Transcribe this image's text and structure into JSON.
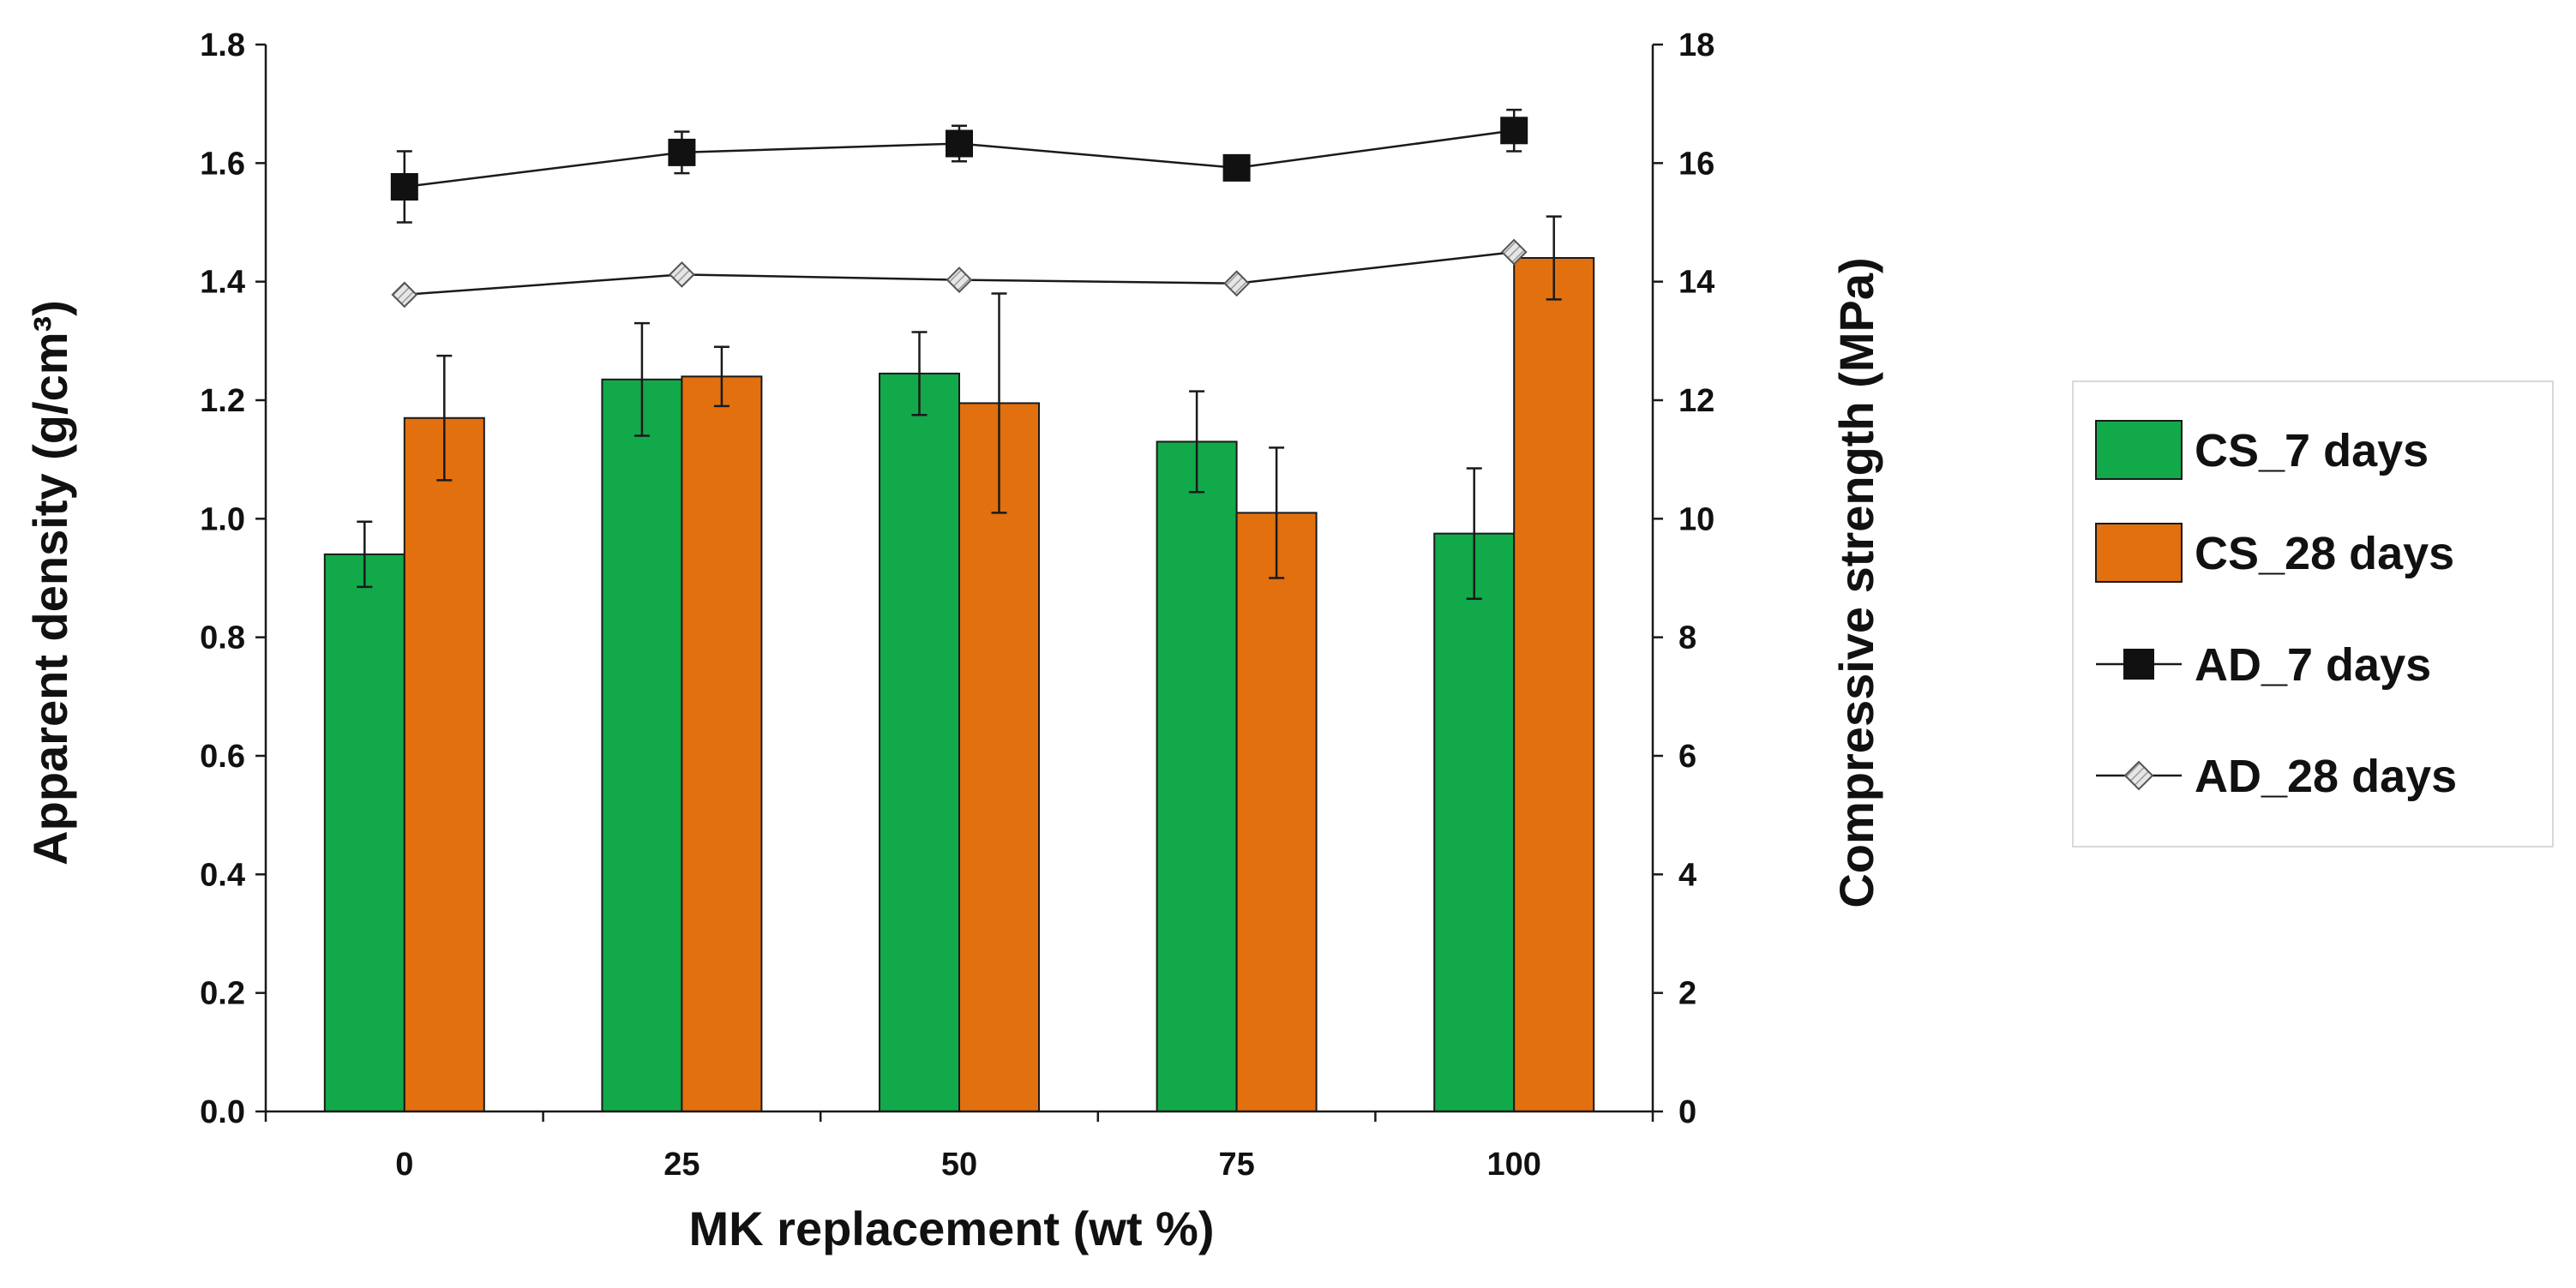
{
  "chart_data": {
    "type": "bar+line",
    "x_title": "MK replacement (wt %)",
    "y_left_title": "Apparent density (g/cm³)",
    "y_right_title": "Compressive strength (MPa)",
    "categories": [
      "0",
      "25",
      "50",
      "75",
      "100"
    ],
    "y_left_range": [
      0,
      1.8
    ],
    "y_left_ticks": [
      "0.0",
      "0.2",
      "0.4",
      "0.6",
      "0.8",
      "1.0",
      "1.2",
      "1.4",
      "1.6",
      "1.8"
    ],
    "y_right_range": [
      0,
      18
    ],
    "y_right_ticks": [
      "0",
      "2",
      "4",
      "6",
      "8",
      "10",
      "12",
      "14",
      "16",
      "18"
    ],
    "bar_series": [
      {
        "name": "CS_7 days",
        "axis": "right",
        "color": "#12a94a",
        "values": [
          9.4,
          12.35,
          12.45,
          11.3,
          9.75
        ],
        "errors": [
          0.55,
          0.95,
          0.7,
          0.85,
          1.1
        ]
      },
      {
        "name": "CS_28 days",
        "axis": "right",
        "color": "#e2700f",
        "values": [
          11.7,
          12.4,
          11.95,
          10.1,
          14.4
        ],
        "errors": [
          1.05,
          0.5,
          1.85,
          1.1,
          0.7
        ]
      }
    ],
    "line_series": [
      {
        "name": "AD_7 days",
        "axis": "left",
        "marker": "square",
        "color": "#111111",
        "values": [
          1.56,
          1.618,
          1.633,
          1.592,
          1.655
        ],
        "errors": [
          0.06,
          0.035,
          0.03,
          0.0,
          0.035
        ]
      },
      {
        "name": "AD_28 days",
        "axis": "left",
        "marker": "diamond",
        "color": "#bcbcbc",
        "values": [
          1.378,
          1.412,
          1.403,
          1.397,
          1.45
        ],
        "errors": [
          0,
          0,
          0,
          0,
          0
        ]
      }
    ],
    "legend": [
      "CS_7 days",
      "CS_28 days",
      "AD_7 days",
      "AD_28 days"
    ],
    "legend_position": "right",
    "grid": false
  }
}
